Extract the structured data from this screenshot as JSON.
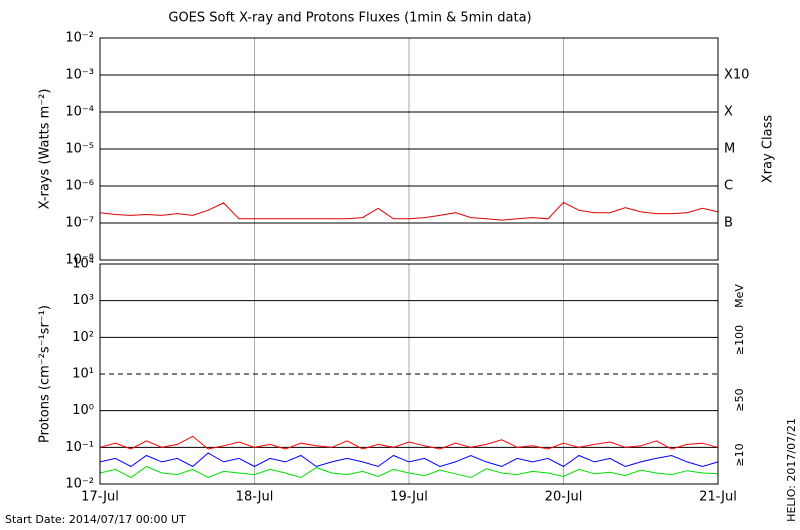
{
  "chart_data": [
    {
      "type": "line",
      "title": "GOES Soft X-ray and Protons Fluxes   (1min & 5min data)",
      "y_label": "X-rays (Watts m⁻²)",
      "y2_label": "Xray Class",
      "log_y": true,
      "grid": true,
      "xlim": [
        17,
        21
      ],
      "ylim": [
        1e-08,
        0.01
      ],
      "yticks": [
        {
          "value": 1e-08,
          "label": "10⁻⁸"
        },
        {
          "value": 1e-07,
          "label": "10⁻⁷"
        },
        {
          "value": 1e-06,
          "label": "10⁻⁶"
        },
        {
          "value": 1e-05,
          "label": "10⁻⁵"
        },
        {
          "value": 0.0001,
          "label": "10⁻⁴"
        },
        {
          "value": 0.001,
          "label": "10⁻³"
        },
        {
          "value": 0.01,
          "label": "10⁻²"
        }
      ],
      "y2ticks": [
        {
          "value": 1e-07,
          "label": "B"
        },
        {
          "value": 1e-06,
          "label": "C"
        },
        {
          "value": 1e-05,
          "label": "M"
        },
        {
          "value": 0.0001,
          "label": "X"
        },
        {
          "value": 0.001,
          "label": "X10"
        }
      ],
      "x": [
        17.0,
        17.1,
        17.2,
        17.3,
        17.4,
        17.5,
        17.6,
        17.7,
        17.8,
        17.9,
        18.0,
        18.1,
        18.2,
        18.3,
        18.4,
        18.5,
        18.6,
        18.7,
        18.8,
        18.9,
        19.0,
        19.1,
        19.2,
        19.3,
        19.4,
        19.5,
        19.6,
        19.7,
        19.8,
        19.9,
        20.0,
        20.1,
        20.2,
        20.3,
        20.4,
        20.5,
        20.6,
        20.7,
        20.8,
        20.9,
        21.0
      ],
      "series": [
        {
          "color": "#e00000",
          "values": [
            1.9e-07,
            1.7e-07,
            1.6e-07,
            1.7e-07,
            1.6e-07,
            1.8e-07,
            1.6e-07,
            2.2e-07,
            3.5e-07,
            1.3e-07,
            1.3e-07,
            1.3e-07,
            1.3e-07,
            1.3e-07,
            1.3e-07,
            1.3e-07,
            1.3e-07,
            1.4e-07,
            2.5e-07,
            1.3e-07,
            1.3e-07,
            1.4e-07,
            1.6e-07,
            1.9e-07,
            1.4e-07,
            1.3e-07,
            1.2e-07,
            1.3e-07,
            1.4e-07,
            1.3e-07,
            3.6e-07,
            2.2e-07,
            1.9e-07,
            1.9e-07,
            2.6e-07,
            2e-07,
            1.8e-07,
            1.8e-07,
            1.9e-07,
            2.5e-07,
            2e-07
          ]
        }
      ]
    },
    {
      "type": "line",
      "y_label": "Protons (cm⁻²s⁻¹sr⁻¹)",
      "legend_title": "MeV",
      "log_y": true,
      "grid": true,
      "threshold": 10,
      "xlim": [
        17,
        21
      ],
      "ylim": [
        0.01,
        10000
      ],
      "xticks": [
        {
          "value": 17,
          "label": "17-Jul"
        },
        {
          "value": 18,
          "label": "18-Jul"
        },
        {
          "value": 19,
          "label": "19-Jul"
        },
        {
          "value": 20,
          "label": "20-Jul"
        },
        {
          "value": 21,
          "label": "21-Jul"
        }
      ],
      "yticks": [
        {
          "value": 0.01,
          "label": "10⁻²"
        },
        {
          "value": 0.1,
          "label": "10⁻¹"
        },
        {
          "value": 1,
          "label": "10⁰"
        },
        {
          "value": 10,
          "label": "10¹"
        },
        {
          "value": 100,
          "label": "10²"
        },
        {
          "value": 1000,
          "label": "10³"
        },
        {
          "value": 10000,
          "label": "10⁴"
        }
      ],
      "x": [
        17.0,
        17.1,
        17.2,
        17.3,
        17.4,
        17.5,
        17.6,
        17.7,
        17.8,
        17.9,
        18.0,
        18.1,
        18.2,
        18.3,
        18.4,
        18.5,
        18.6,
        18.7,
        18.8,
        18.9,
        19.0,
        19.1,
        19.2,
        19.3,
        19.4,
        19.5,
        19.6,
        19.7,
        19.8,
        19.9,
        20.0,
        20.1,
        20.2,
        20.3,
        20.4,
        20.5,
        20.6,
        20.7,
        20.8,
        20.9,
        21.0
      ],
      "series": [
        {
          "name": "≥10",
          "color": "#ff0000",
          "values": [
            0.1,
            0.13,
            0.09,
            0.15,
            0.1,
            0.12,
            0.2,
            0.09,
            0.11,
            0.14,
            0.1,
            0.12,
            0.09,
            0.13,
            0.11,
            0.1,
            0.15,
            0.09,
            0.12,
            0.1,
            0.14,
            0.11,
            0.09,
            0.13,
            0.1,
            0.12,
            0.16,
            0.1,
            0.11,
            0.09,
            0.13,
            0.1,
            0.12,
            0.14,
            0.1,
            0.11,
            0.15,
            0.09,
            0.12,
            0.13,
            0.1
          ]
        },
        {
          "name": "≥50",
          "color": "#0000ff",
          "values": [
            0.04,
            0.05,
            0.03,
            0.06,
            0.04,
            0.05,
            0.03,
            0.07,
            0.04,
            0.05,
            0.03,
            0.05,
            0.04,
            0.06,
            0.03,
            0.04,
            0.05,
            0.04,
            0.03,
            0.06,
            0.04,
            0.05,
            0.03,
            0.04,
            0.06,
            0.04,
            0.03,
            0.05,
            0.04,
            0.05,
            0.03,
            0.06,
            0.04,
            0.05,
            0.03,
            0.04,
            0.05,
            0.06,
            0.04,
            0.03,
            0.04
          ]
        },
        {
          "name": "≥100",
          "color": "#00e000",
          "values": [
            0.02,
            0.025,
            0.015,
            0.03,
            0.02,
            0.018,
            0.025,
            0.015,
            0.022,
            0.02,
            0.018,
            0.025,
            0.02,
            0.015,
            0.028,
            0.02,
            0.018,
            0.022,
            0.016,
            0.025,
            0.02,
            0.017,
            0.024,
            0.019,
            0.015,
            0.026,
            0.02,
            0.018,
            0.022,
            0.02,
            0.016,
            0.025,
            0.019,
            0.021,
            0.017,
            0.024,
            0.02,
            0.018,
            0.023,
            0.02,
            0.019
          ]
        }
      ]
    }
  ],
  "footer": {
    "start": "Start Date: 2014/07/17 00:00 UT",
    "credit": "HELIO: 2017/07/21"
  }
}
